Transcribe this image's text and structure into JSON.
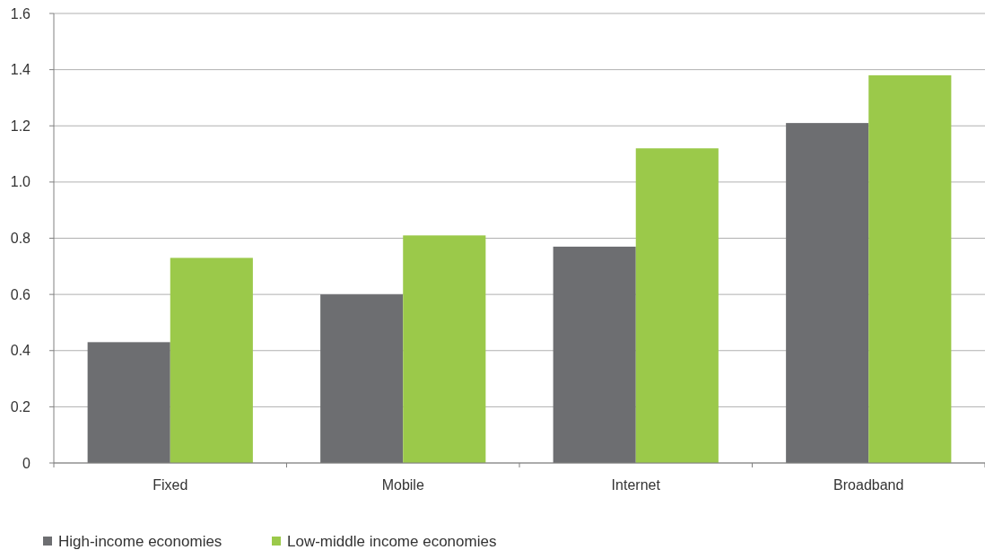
{
  "chart_data": {
    "type": "bar",
    "categories": [
      "Fixed",
      "Mobile",
      "Internet",
      "Broadband"
    ],
    "series": [
      {
        "name": "High-income economies",
        "color": "#6d6e71",
        "values": [
          0.43,
          0.6,
          0.77,
          1.21
        ]
      },
      {
        "name": "Low-middle income economies",
        "color": "#9bc94a",
        "values": [
          0.73,
          0.81,
          1.12,
          1.38
        ]
      }
    ],
    "ylim": [
      0,
      1.6
    ],
    "yticks": [
      {
        "value": 0,
        "label": "0"
      },
      {
        "value": 0.2,
        "label": "0.2"
      },
      {
        "value": 0.4,
        "label": "0.4"
      },
      {
        "value": 0.6,
        "label": "0.6"
      },
      {
        "value": 0.8,
        "label": "0.8"
      },
      {
        "value": 1,
        "label": "1.0"
      },
      {
        "value": 1.2,
        "label": "1.2"
      },
      {
        "value": 1.4,
        "label": "1.4"
      },
      {
        "value": 1.6,
        "label": "1.6"
      }
    ],
    "grid": "y",
    "legend": "bottom left"
  }
}
